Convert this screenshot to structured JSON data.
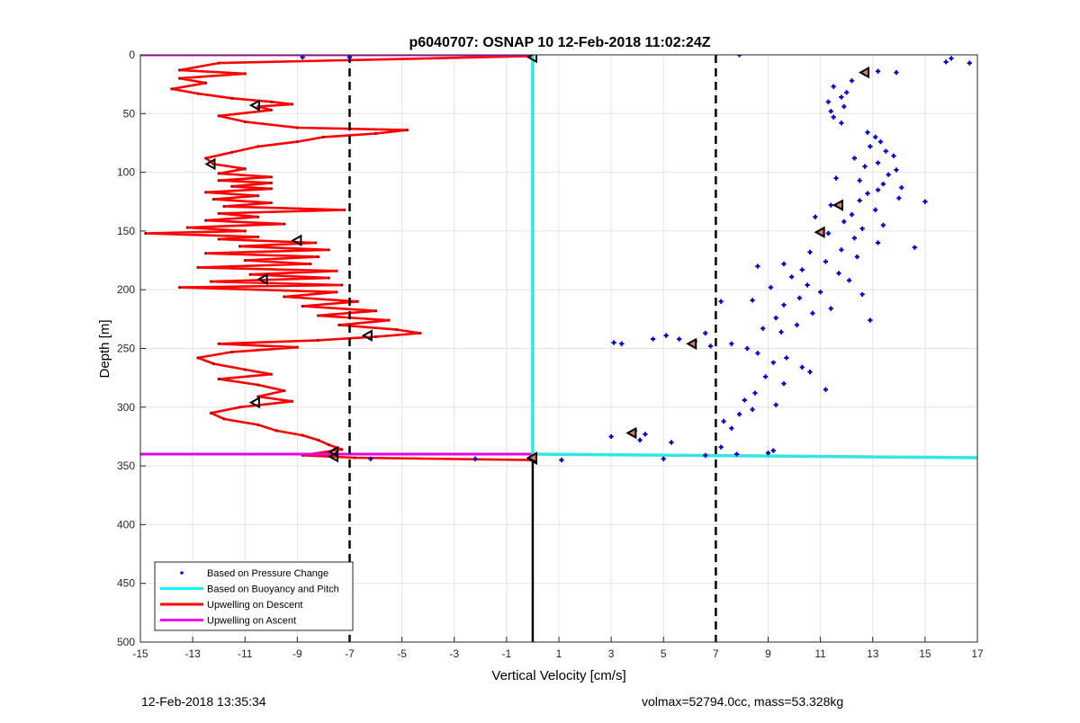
{
  "figure": {
    "footer_left": "12-Feb-2018 13:35:34",
    "footer_right": "volmax=52794.0cc, mass=53.328kg"
  },
  "chart_data": {
    "type": "scatter",
    "title": "p6040707: OSNAP 10 12-Feb-2018 11:02:24Z",
    "xlabel": "Vertical Velocity [cm/s]",
    "ylabel": "Depth [m]",
    "xlim": [
      -15,
      17
    ],
    "ylim": [
      0,
      500
    ],
    "y_reversed": true,
    "grid": true,
    "xticks": [
      -15,
      -13,
      -11,
      -9,
      -7,
      -5,
      -3,
      -1,
      1,
      3,
      5,
      7,
      9,
      11,
      13,
      15,
      17
    ],
    "yticks": [
      0,
      50,
      100,
      150,
      200,
      250,
      300,
      350,
      400,
      450,
      500
    ],
    "legend_position": "bottom-left",
    "legend": [
      {
        "label": "Based on Pressure Change",
        "color": "#0000ff",
        "style": "dot"
      },
      {
        "label": "Based on Buoyancy and Pitch",
        "color": "#00ffff",
        "style": "line"
      },
      {
        "label": "Upwelling on Descent",
        "color": "#ff0000",
        "style": "line"
      },
      {
        "label": "Upwelling on Ascent",
        "color": "#ff00ff",
        "style": "line"
      }
    ],
    "colors": {
      "pressure": "#0000cc",
      "buoyancy": "#33e5e5",
      "descent": "#ff0000",
      "descent_marker": "#b30000",
      "ascent": "#e600e6",
      "reference": "#000000"
    },
    "reference_lines": {
      "dashed_x": [
        -7,
        7
      ],
      "solid_x": 0,
      "solid_depth_range": [
        345,
        500
      ]
    },
    "series": {
      "buoyancy_pitch": {
        "points": [
          [
            0,
            0
          ],
          [
            0,
            340
          ],
          [
            17,
            343
          ]
        ]
      },
      "upwelling_descent": {
        "points": [
          [
            0,
            1
          ],
          [
            -12,
            7
          ],
          [
            -13.5,
            13
          ],
          [
            -11,
            16
          ],
          [
            -13.5,
            20
          ],
          [
            -12.5,
            24
          ],
          [
            -13.8,
            29
          ],
          [
            -12.8,
            33
          ],
          [
            -11.5,
            37
          ],
          [
            -10,
            40
          ],
          [
            -9.2,
            42
          ],
          [
            -10.5,
            44
          ],
          [
            -10,
            47
          ],
          [
            -12,
            52
          ],
          [
            -11,
            57
          ],
          [
            -9,
            62
          ],
          [
            -4.8,
            64
          ],
          [
            -6,
            67
          ],
          [
            -8,
            70
          ],
          [
            -9,
            74
          ],
          [
            -10.5,
            78
          ],
          [
            -11.5,
            83
          ],
          [
            -12.5,
            88
          ],
          [
            -12.2,
            93
          ],
          [
            -11,
            97
          ],
          [
            -12,
            101
          ],
          [
            -10,
            104
          ],
          [
            -12,
            107
          ],
          [
            -10,
            109
          ],
          [
            -11.5,
            112
          ],
          [
            -10,
            114
          ],
          [
            -12.5,
            117
          ],
          [
            -10.5,
            120
          ],
          [
            -12.2,
            123
          ],
          [
            -10,
            126
          ],
          [
            -11.8,
            129
          ],
          [
            -7.2,
            132
          ],
          [
            -12,
            135
          ],
          [
            -10.5,
            138
          ],
          [
            -12.5,
            141
          ],
          [
            -9.5,
            144
          ],
          [
            -13.2,
            147
          ],
          [
            -11,
            150
          ],
          [
            -14.8,
            152
          ],
          [
            -10.5,
            155
          ],
          [
            -12,
            157
          ],
          [
            -8.3,
            160
          ],
          [
            -11.2,
            163
          ],
          [
            -7.8,
            166
          ],
          [
            -12.5,
            169
          ],
          [
            -8.2,
            172
          ],
          [
            -11,
            175
          ],
          [
            -8.5,
            178
          ],
          [
            -12.8,
            181
          ],
          [
            -7.5,
            184
          ],
          [
            -10.8,
            187
          ],
          [
            -7.8,
            190
          ],
          [
            -12.3,
            193
          ],
          [
            -7.3,
            196
          ],
          [
            -13.5,
            198
          ],
          [
            -7.5,
            202
          ],
          [
            -9.5,
            206
          ],
          [
            -6.7,
            210
          ],
          [
            -8.8,
            214
          ],
          [
            -6,
            218
          ],
          [
            -8.2,
            222
          ],
          [
            -5.5,
            226
          ],
          [
            -7.4,
            230
          ],
          [
            -5.2,
            234
          ],
          [
            -4.3,
            237
          ],
          [
            -6,
            240
          ],
          [
            -8.2,
            243
          ],
          [
            -12,
            246
          ],
          [
            -9,
            249
          ],
          [
            -11.5,
            253
          ],
          [
            -12.8,
            258
          ],
          [
            -12.2,
            263
          ],
          [
            -11,
            268
          ],
          [
            -10,
            272
          ],
          [
            -12,
            276
          ],
          [
            -10.5,
            281
          ],
          [
            -9.5,
            286
          ],
          [
            -10.5,
            291
          ],
          [
            -9.2,
            295
          ],
          [
            -11.2,
            300
          ],
          [
            -12.3,
            305
          ],
          [
            -11.8,
            310
          ],
          [
            -10.5,
            315
          ],
          [
            -9.8,
            320
          ],
          [
            -8.8,
            324
          ],
          [
            -8.2,
            328
          ],
          [
            -7.8,
            332
          ],
          [
            -7.3,
            336
          ],
          [
            -8.8,
            341
          ],
          [
            -6.8,
            343
          ],
          [
            0,
            345
          ]
        ],
        "markers": [
          [
            0,
            2
          ],
          [
            -10.6,
            43
          ],
          [
            -12.3,
            93
          ],
          [
            -9,
            158
          ],
          [
            -10.3,
            191
          ],
          [
            -6.3,
            239
          ],
          [
            -10.6,
            296
          ],
          [
            -7.6,
            338
          ],
          [
            -7.6,
            342
          ],
          [
            0,
            344
          ]
        ]
      },
      "upwelling_ascent": {
        "points": [
          [
            -15,
            0
          ],
          [
            0,
            0
          ],
          [
            -15,
            340
          ],
          [
            0,
            340
          ]
        ]
      },
      "pressure_change": {
        "points": [
          [
            -8.8,
            2
          ],
          [
            -7,
            2
          ],
          [
            7.9,
            0
          ],
          [
            16,
            3
          ],
          [
            15.8,
            6
          ],
          [
            16.7,
            7
          ],
          [
            13.2,
            14
          ],
          [
            13.9,
            15
          ],
          [
            12.7,
            16
          ],
          [
            12.2,
            22
          ],
          [
            11.5,
            27
          ],
          [
            12,
            32
          ],
          [
            11.8,
            36
          ],
          [
            11.3,
            40
          ],
          [
            11.9,
            44
          ],
          [
            11.4,
            48
          ],
          [
            11.5,
            53
          ],
          [
            11.8,
            58
          ],
          [
            12.8,
            66
          ],
          [
            13.1,
            70
          ],
          [
            13.3,
            74
          ],
          [
            12.9,
            78
          ],
          [
            13.5,
            82
          ],
          [
            13.8,
            86
          ],
          [
            12.3,
            88
          ],
          [
            13.2,
            92
          ],
          [
            12.7,
            95
          ],
          [
            13.9,
            98
          ],
          [
            13.6,
            102
          ],
          [
            11.6,
            105
          ],
          [
            12.5,
            107
          ],
          [
            13.4,
            110
          ],
          [
            14.1,
            113
          ],
          [
            13.2,
            115
          ],
          [
            12.8,
            118
          ],
          [
            14,
            122
          ],
          [
            12.5,
            124
          ],
          [
            15,
            125
          ],
          [
            11.4,
            128
          ],
          [
            13.1,
            132
          ],
          [
            12.2,
            136
          ],
          [
            10.8,
            138
          ],
          [
            11.9,
            142
          ],
          [
            13.4,
            145
          ],
          [
            12.6,
            148
          ],
          [
            11.3,
            152
          ],
          [
            12.3,
            156
          ],
          [
            13.2,
            160
          ],
          [
            14.6,
            164
          ],
          [
            11.8,
            166
          ],
          [
            10.6,
            168
          ],
          [
            12.4,
            172
          ],
          [
            11.2,
            176
          ],
          [
            9.6,
            178
          ],
          [
            8.6,
            180
          ],
          [
            10.3,
            183
          ],
          [
            11.7,
            186
          ],
          [
            9.9,
            189
          ],
          [
            12.1,
            192
          ],
          [
            10.5,
            196
          ],
          [
            9.1,
            198
          ],
          [
            11,
            202
          ],
          [
            12.6,
            204
          ],
          [
            10.2,
            207
          ],
          [
            8.4,
            209
          ],
          [
            7.2,
            210
          ],
          [
            9.6,
            213
          ],
          [
            11.4,
            216
          ],
          [
            10.7,
            220
          ],
          [
            9.3,
            224
          ],
          [
            12.9,
            226
          ],
          [
            10.1,
            230
          ],
          [
            8.8,
            233
          ],
          [
            9.5,
            236
          ],
          [
            6.6,
            237
          ],
          [
            5.1,
            239
          ],
          [
            5.6,
            242
          ],
          [
            4.6,
            242
          ],
          [
            6.2,
            244
          ],
          [
            7.6,
            246
          ],
          [
            6.8,
            248
          ],
          [
            3.1,
            245
          ],
          [
            3.4,
            246
          ],
          [
            8.2,
            250
          ],
          [
            8.6,
            254
          ],
          [
            9.7,
            258
          ],
          [
            9.2,
            262
          ],
          [
            10.3,
            266
          ],
          [
            10.6,
            270
          ],
          [
            8.9,
            274
          ],
          [
            9.6,
            280
          ],
          [
            11.2,
            285
          ],
          [
            8.5,
            288
          ],
          [
            8.1,
            294
          ],
          [
            9.3,
            298
          ],
          [
            8.4,
            302
          ],
          [
            7.9,
            306
          ],
          [
            7.3,
            312
          ],
          [
            7.6,
            318
          ],
          [
            3.9,
            320
          ],
          [
            4.3,
            323
          ],
          [
            3,
            325
          ],
          [
            4.1,
            328
          ],
          [
            5.3,
            330
          ],
          [
            7.2,
            334
          ],
          [
            9.2,
            337
          ],
          [
            9,
            339
          ],
          [
            7.8,
            340
          ],
          [
            6.6,
            341
          ],
          [
            5,
            344
          ],
          [
            1.1,
            345
          ],
          [
            -2.2,
            344
          ],
          [
            -6.2,
            344
          ]
        ],
        "markers": [
          [
            12.7,
            15
          ],
          [
            11.7,
            128
          ],
          [
            11,
            151
          ],
          [
            6.1,
            246
          ],
          [
            3.8,
            322
          ],
          [
            0,
            343
          ]
        ]
      }
    }
  }
}
